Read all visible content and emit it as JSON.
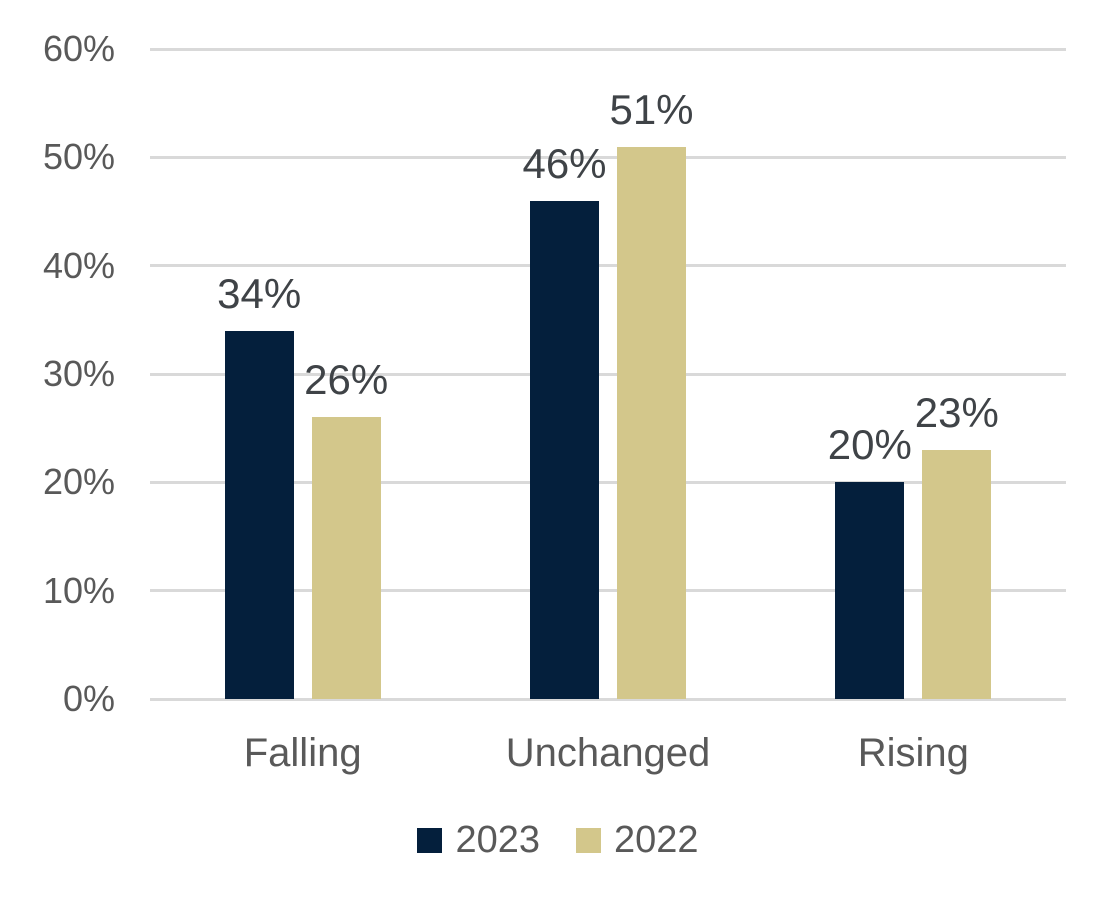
{
  "chart_data": {
    "type": "bar",
    "title": "",
    "categories": [
      "Falling",
      "Unchanged",
      "Rising"
    ],
    "series": [
      {
        "name": "2023",
        "color": "#041f3c",
        "values": [
          34,
          46,
          20
        ],
        "labels": [
          "34%",
          "46%",
          "20%"
        ]
      },
      {
        "name": "2022",
        "color": "#d3c78b",
        "values": [
          26,
          51,
          23
        ],
        "labels": [
          "26%",
          "51%",
          "23%"
        ]
      }
    ],
    "y_ticks": [
      "0%",
      "10%",
      "20%",
      "30%",
      "40%",
      "50%",
      "60%"
    ],
    "ylim": [
      0,
      60
    ],
    "grid": true,
    "legend_position": "bottom",
    "value_format": "percent",
    "xlabel": "",
    "ylabel": ""
  },
  "colors": {
    "background": "#ffffff",
    "gridline": "#d9d9d9",
    "axis_text": "#595959",
    "data_label_text": "#3f4347"
  }
}
